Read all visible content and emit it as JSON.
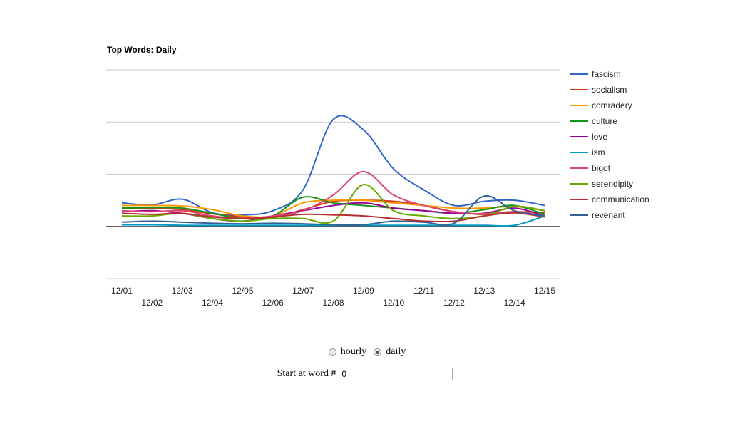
{
  "chart_data": {
    "type": "line",
    "title": "Top Words: Daily",
    "x": [
      "12/01",
      "12/02",
      "12/03",
      "12/04",
      "12/05",
      "12/06",
      "12/07",
      "12/08",
      "12/09",
      "12/10",
      "12/11",
      "12/12",
      "12/13",
      "12/14",
      "12/15"
    ],
    "ylim": [
      -10,
      30
    ],
    "grid": true,
    "legend_position": "right",
    "series": [
      {
        "name": "fascism",
        "color": "#3366cc",
        "values": [
          4.5,
          4.1,
          5.2,
          2.6,
          2.2,
          3.0,
          7.0,
          20.5,
          18.5,
          11.0,
          7.0,
          4.0,
          4.8,
          5.0,
          4.0
        ]
      },
      {
        "name": "socialism",
        "color": "#dc3912",
        "values": [
          3.5,
          3.5,
          3.2,
          2.4,
          1.8,
          1.7,
          3.2,
          4.8,
          5.0,
          4.8,
          4.0,
          2.8,
          2.3,
          2.8,
          2.6
        ]
      },
      {
        "name": "comradery",
        "color": "#ff9900",
        "values": [
          4.0,
          4.0,
          3.9,
          3.2,
          2.0,
          2.0,
          4.5,
          5.0,
          5.0,
          4.5,
          4.0,
          3.5,
          3.5,
          3.8,
          3.0
        ]
      },
      {
        "name": "culture",
        "color": "#109618",
        "values": [
          3.5,
          3.6,
          3.5,
          2.5,
          1.5,
          2.0,
          5.6,
          4.5,
          4.0,
          3.5,
          3.0,
          2.5,
          3.2,
          4.0,
          2.3
        ]
      },
      {
        "name": "love",
        "color": "#990099",
        "values": [
          2.8,
          3.0,
          2.5,
          1.5,
          1.0,
          2.0,
          3.0,
          4.0,
          4.5,
          3.5,
          3.0,
          2.5,
          2.5,
          3.5,
          2.0
        ]
      },
      {
        "name": "ism",
        "color": "#0099c6",
        "values": [
          0.3,
          0.3,
          0.2,
          0.2,
          0.2,
          0.2,
          0.2,
          0.2,
          0.2,
          0.2,
          0.2,
          0.2,
          0.2,
          0.2,
          2.0
        ]
      },
      {
        "name": "bigot",
        "color": "#dd4477",
        "values": [
          3.0,
          2.8,
          3.0,
          2.0,
          1.5,
          2.0,
          3.0,
          6.0,
          10.5,
          6.0,
          4.0,
          2.8,
          2.4,
          2.8,
          2.0
        ]
      },
      {
        "name": "serendipity",
        "color": "#66aa00",
        "values": [
          2.0,
          2.0,
          2.5,
          1.5,
          1.0,
          1.5,
          1.5,
          1.0,
          8.0,
          3.0,
          2.0,
          1.5,
          2.0,
          3.8,
          3.0
        ]
      },
      {
        "name": "communication",
        "color": "#b82e2e",
        "values": [
          2.5,
          2.3,
          2.5,
          1.8,
          1.5,
          1.8,
          2.3,
          2.2,
          2.0,
          1.5,
          1.0,
          1.0,
          2.0,
          2.6,
          1.8
        ]
      },
      {
        "name": "revenant",
        "color": "#316395",
        "values": [
          0.8,
          1.0,
          0.8,
          0.6,
          0.5,
          0.6,
          0.5,
          0.3,
          0.3,
          1.0,
          0.8,
          0.6,
          5.8,
          3.0,
          2.0
        ]
      }
    ]
  },
  "controls": {
    "radio_options": [
      {
        "label": "hourly",
        "selected": false
      },
      {
        "label": "daily",
        "selected": true
      }
    ],
    "start_label": "Start at word #",
    "start_value": "0"
  }
}
